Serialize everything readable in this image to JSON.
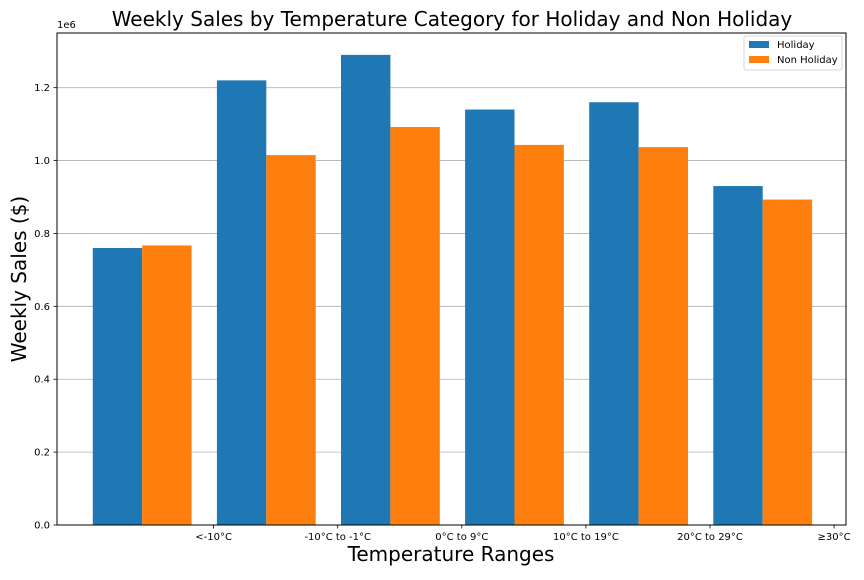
{
  "chart_data": {
    "type": "bar",
    "title": "Weekly Sales by Temperature Category for Holiday and Non Holiday",
    "xlabel": "Temperature Ranges",
    "ylabel": "Weekly Sales ($)",
    "y_offset_text": "1e6",
    "y_scale_divisor": 1000000,
    "categories": [
      "<-10°C",
      "-10°C to -1°C",
      "0°C to 9°C",
      "10°C to 19°C",
      "20°C to 29°C",
      "≥30°C"
    ],
    "series": [
      {
        "name": "Holiday",
        "color": "#1f77b4",
        "values": [
          760000,
          1220000,
          1290000,
          1140000,
          1160000,
          930000
        ]
      },
      {
        "name": "Non Holiday",
        "color": "#ff7f0e",
        "values": [
          767000,
          1015000,
          1092000,
          1043000,
          1037000,
          893000
        ]
      }
    ],
    "ylim": [
      0,
      1350000
    ],
    "yticks": [
      0,
      200000,
      400000,
      600000,
      800000,
      1000000,
      1200000
    ],
    "ytick_labels": [
      "0.0",
      "0.2",
      "0.4",
      "0.6",
      "0.8",
      "1.0",
      "1.2"
    ],
    "grid": "y",
    "legend_position": "top-right"
  }
}
